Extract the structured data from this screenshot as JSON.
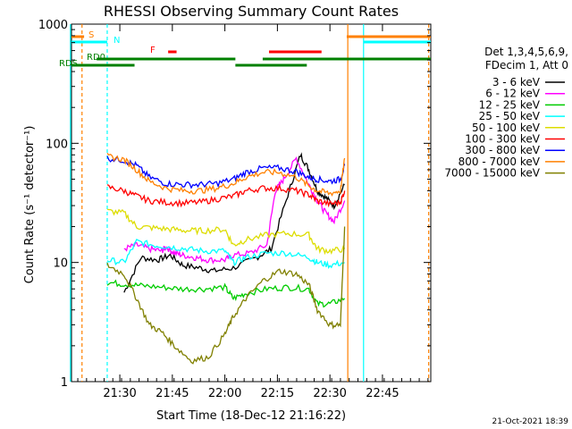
{
  "chart_data": {
    "type": "line",
    "title": "RHESSI Observing Summary Count Rates",
    "xlabel": "Start Time (18-Dec-12 21:16:22)",
    "ylabel": "Count Rate (s⁻¹ detector⁻¹)",
    "yscale": "log",
    "ylim": [
      1,
      1000
    ],
    "xlim_minutes": [
      21.27,
      22.98
    ],
    "x_unit": "hours (UT)",
    "x_ticks": [
      {
        "label": "21:30",
        "value": 21.5
      },
      {
        "label": "21:45",
        "value": 21.75
      },
      {
        "label": "22:00",
        "value": 22.0
      },
      {
        "label": "22:15",
        "value": 22.25
      },
      {
        "label": "22:30",
        "value": 22.5
      },
      {
        "label": "22:45",
        "value": 22.75
      }
    ],
    "y_ticks": [
      {
        "label": "1",
        "value": 1
      },
      {
        "label": "10",
        "value": 10
      },
      {
        "label": "100",
        "value": 100
      },
      {
        "label": "1000",
        "value": 1000
      }
    ],
    "legend_header": [
      "Det 1,3,4,5,6,9,",
      "FDecim 1, Att 0"
    ],
    "legend_placement": "right",
    "footer_date": "21-Oct-2021 18:39",
    "series": [
      {
        "name": "3 - 6 keV",
        "color": "#000000",
        "x": [
          21.52,
          21.6,
          21.68,
          21.74,
          21.8,
          21.88,
          21.95,
          22.04,
          22.15,
          22.22,
          22.3,
          22.36,
          22.4,
          22.44,
          22.48,
          22.52,
          22.57
        ],
        "y": [
          5.6,
          11.0,
          10.5,
          11.5,
          9.5,
          9.0,
          8.5,
          9.0,
          11.0,
          13.0,
          37.0,
          80.0,
          60.0,
          40.0,
          35.0,
          30.0,
          45.0
        ]
      },
      {
        "name": "6 - 12 keV",
        "color": "#ff00ff",
        "x": [
          21.52,
          21.58,
          21.64,
          21.7,
          21.72,
          21.76,
          21.8,
          21.86,
          21.92,
          22.0,
          22.04,
          22.12,
          22.2,
          22.24,
          22.28,
          22.34,
          22.4,
          22.44,
          22.48,
          22.52,
          22.57
        ],
        "y": [
          13.0,
          14.0,
          13.0,
          12.5,
          13.5,
          12.0,
          11.5,
          11.0,
          10.5,
          10.5,
          11.5,
          12.0,
          14.0,
          40.0,
          50.0,
          75.0,
          45.0,
          33.0,
          26.0,
          22.0,
          33.0
        ]
      },
      {
        "name": "12 - 25 keV",
        "color": "#00cc00",
        "x": [
          21.44,
          21.52,
          21.6,
          21.7,
          21.8,
          21.9,
          22.0,
          22.04,
          22.1,
          22.2,
          22.3,
          22.4,
          22.44,
          22.5,
          22.57
        ],
        "y": [
          6.8,
          6.6,
          6.4,
          6.2,
          6.0,
          6.0,
          6.2,
          5.0,
          5.5,
          6.0,
          6.2,
          6.0,
          4.5,
          4.5,
          5.0
        ]
      },
      {
        "name": "25 - 50 keV",
        "color": "#00ffff",
        "x": [
          21.44,
          21.52,
          21.58,
          21.66,
          21.74,
          21.82,
          21.9,
          22.0,
          22.04,
          22.1,
          22.2,
          22.3,
          22.4,
          22.44,
          22.5,
          22.57
        ],
        "y": [
          10.5,
          10.0,
          15.0,
          14.0,
          13.5,
          13.0,
          12.5,
          12.5,
          10.0,
          11.0,
          12.0,
          12.0,
          11.0,
          10.0,
          9.5,
          10.0
        ]
      },
      {
        "name": "50 - 100 keV",
        "color": "#dddd00",
        "x": [
          21.44,
          21.52,
          21.58,
          21.66,
          21.74,
          21.82,
          21.9,
          22.0,
          22.04,
          22.1,
          22.2,
          22.3,
          22.4,
          22.44,
          22.5,
          22.57
        ],
        "y": [
          27.0,
          26.0,
          20.0,
          19.5,
          19.0,
          18.5,
          18.5,
          19.0,
          14.0,
          15.5,
          17.0,
          17.5,
          17.0,
          13.0,
          12.5,
          13.0
        ]
      },
      {
        "name": "100 - 300 keV",
        "color": "#ff0000",
        "x": [
          21.44,
          21.52,
          21.58,
          21.64,
          21.72,
          21.8,
          21.88,
          21.96,
          22.04,
          22.1,
          22.18,
          22.26,
          22.34,
          22.4,
          22.44,
          22.5,
          22.55,
          22.57
        ],
        "y": [
          43.0,
          40.0,
          36.0,
          33.0,
          32.0,
          31.5,
          32.0,
          34.0,
          36.0,
          40.0,
          42.0,
          42.0,
          40.0,
          37.0,
          33.0,
          31.0,
          32.0,
          40.0
        ]
      },
      {
        "name": "300 - 800 keV",
        "color": "#0000ff",
        "x": [
          21.44,
          21.52,
          21.58,
          21.64,
          21.72,
          21.8,
          21.88,
          21.96,
          22.04,
          22.1,
          22.18,
          22.26,
          22.34,
          22.4,
          22.44,
          22.5,
          22.55,
          22.57
        ],
        "y": [
          75.0,
          72.0,
          65.0,
          52.0,
          46.0,
          45.0,
          45.0,
          46.0,
          50.0,
          57.0,
          62.0,
          62.0,
          58.0,
          52.0,
          50.0,
          48.0,
          50.0,
          65.0
        ]
      },
      {
        "name": "800 - 7000 keV",
        "color": "#ff8000",
        "x": [
          21.44,
          21.52,
          21.58,
          21.64,
          21.72,
          21.8,
          21.88,
          21.96,
          22.04,
          22.1,
          22.18,
          22.26,
          22.34,
          22.4,
          22.44,
          22.5,
          22.55,
          22.57
        ],
        "y": [
          78.0,
          73.0,
          60.0,
          48.0,
          42.0,
          40.0,
          40.0,
          42.0,
          46.0,
          52.0,
          57.0,
          57.0,
          52.0,
          44.0,
          40.0,
          38.0,
          40.0,
          75.0
        ]
      },
      {
        "name": "7000 - 15000 keV",
        "color": "#808000",
        "x": [
          21.44,
          21.52,
          21.58,
          21.64,
          21.7,
          21.76,
          21.84,
          21.92,
          22.0,
          22.04,
          22.1,
          22.18,
          22.26,
          22.34,
          22.4,
          22.44,
          22.5,
          22.55,
          22.57
        ],
        "y": [
          9.5,
          8.0,
          5.0,
          3.0,
          2.6,
          2.0,
          1.5,
          1.6,
          2.5,
          3.5,
          5.0,
          7.0,
          8.5,
          8.0,
          6.5,
          4.0,
          3.0,
          3.0,
          20.0
        ]
      }
    ],
    "flag_bars": [
      {
        "label": "S",
        "color": "#ff8000",
        "segments": [
          [
            21.27,
            21.33
          ],
          [
            22.58,
            22.98
          ]
        ]
      },
      {
        "label": "N",
        "color": "#00ffff",
        "segments": [
          [
            21.27,
            21.44
          ],
          [
            22.66,
            22.98
          ]
        ]
      },
      {
        "label": "F",
        "color": "#ff0000",
        "segments": [
          [
            21.73,
            21.77
          ],
          [
            22.21,
            22.46
          ]
        ]
      },
      {
        "label": "RD0",
        "color": "#008000",
        "segments": [
          [
            21.39,
            22.05
          ],
          [
            22.18,
            22.98
          ]
        ]
      },
      {
        "label": "RDS",
        "color": "#008000",
        "segments": [
          [
            21.27,
            21.57
          ],
          [
            22.05,
            22.39
          ]
        ]
      }
    ],
    "vertical_lines": [
      {
        "x": 21.265,
        "color": "#00ffff",
        "style": "solid"
      },
      {
        "x": 21.32,
        "color": "#ff8000",
        "style": "dashed"
      },
      {
        "x": 21.44,
        "color": "#00ffff",
        "style": "dashed"
      },
      {
        "x": 22.585,
        "color": "#ff8000",
        "style": "solid"
      },
      {
        "x": 22.66,
        "color": "#00ffff",
        "style": "solid"
      },
      {
        "x": 22.97,
        "color": "#ff8000",
        "style": "dashed"
      }
    ]
  }
}
